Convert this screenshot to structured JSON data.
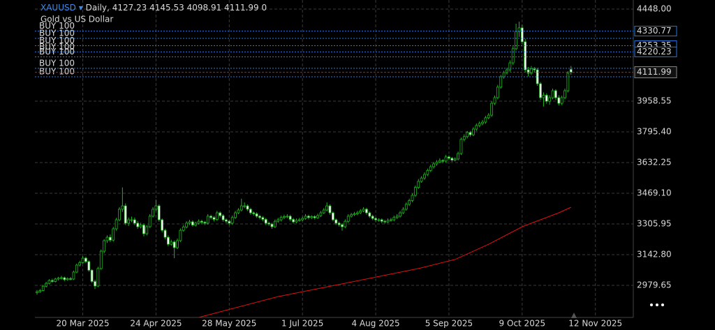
{
  "chart_data": {
    "type": "candlestick",
    "symbol": "XAUUSD",
    "timeframe": "Daily,",
    "volume": 0,
    "subtitle": "Gold vs US Dollar",
    "ylim": [
      2809,
      4496
    ],
    "yticks": [
      {
        "value": 4448,
        "label": "4448.00"
      },
      {
        "value": 3958.55,
        "label": "3958.55"
      },
      {
        "value": 3795.4,
        "label": "3795.40"
      },
      {
        "value": 3632.25,
        "label": "3632.25"
      },
      {
        "value": 3469.1,
        "label": "3469.10"
      },
      {
        "value": 3305.95,
        "label": "3305.95"
      },
      {
        "value": 3142.8,
        "label": "3142.80"
      },
      {
        "value": 2979.65,
        "label": "2979.65"
      }
    ],
    "grid": true,
    "bull_color": "#000000",
    "bear_color": "#ffffff",
    "candle_outline": "#1fb81f",
    "categories": [
      null,
      null,
      null,
      null,
      null,
      null,
      null,
      null,
      null,
      null,
      null,
      null,
      null,
      null,
      null,
      "20 Mar 2025",
      null,
      null,
      null,
      null,
      null,
      null,
      null,
      null,
      null,
      null,
      null,
      null,
      null,
      null,
      null,
      null,
      null,
      null,
      null,
      null,
      null,
      null,
      null,
      "24 Apr 2025",
      null,
      null,
      null,
      null,
      null,
      null,
      null,
      null,
      null,
      null,
      null,
      null,
      null,
      null,
      null,
      null,
      null,
      null,
      null,
      null,
      null,
      null,
      null,
      "28 May 2025",
      null,
      null,
      null,
      null,
      null,
      null,
      null,
      null,
      null,
      null,
      null,
      null,
      null,
      null,
      null,
      null,
      null,
      null,
      null,
      null,
      null,
      null,
      null,
      "1 Jul 2025",
      null,
      null,
      null,
      null,
      null,
      null,
      null,
      null,
      null,
      null,
      null,
      null,
      null,
      null,
      null,
      null,
      null,
      null,
      null,
      null,
      null,
      null,
      null,
      "4 Aug 2025",
      null,
      null,
      null,
      null,
      null,
      null,
      null,
      null,
      null,
      null,
      null,
      null,
      null,
      null,
      null,
      null,
      null,
      null,
      null,
      null,
      null,
      null,
      null,
      "5 Sep 2025",
      null,
      null,
      null,
      null,
      null,
      null,
      null,
      null,
      null,
      null,
      null,
      null,
      null,
      null,
      null,
      null,
      null,
      null,
      null,
      null,
      null,
      null,
      null,
      "9 Oct 2025",
      null,
      null,
      null,
      null,
      null,
      null,
      null,
      null,
      null,
      null,
      null,
      null,
      null,
      null,
      null,
      null,
      null,
      null,
      null,
      null,
      null,
      null,
      null,
      "12 Nov 2025",
      null
    ],
    "candles": [
      [
        2940,
        2955,
        2930,
        2946
      ],
      [
        2946,
        2960,
        2940,
        2952
      ],
      [
        2952,
        2982,
        2948,
        2975
      ],
      [
        2975,
        2998,
        2968,
        2990
      ],
      [
        2990,
        3012,
        2985,
        3005
      ],
      [
        3005,
        3015,
        2994,
        3000
      ],
      [
        3000,
        3020,
        2995,
        3013
      ],
      [
        3013,
        3025,
        3005,
        3018
      ],
      [
        3018,
        3030,
        3010,
        3020
      ],
      [
        3020,
        3026,
        3002,
        3010
      ],
      [
        3010,
        3022,
        3004,
        3015
      ],
      [
        3015,
        3024,
        3006,
        3013
      ],
      [
        3013,
        3058,
        3008,
        3050
      ],
      [
        3050,
        3095,
        3044,
        3087
      ],
      [
        3087,
        3110,
        3080,
        3100
      ],
      [
        3100,
        3135,
        3095,
        3124
      ],
      [
        3124,
        3132,
        3098,
        3106
      ],
      [
        3106,
        3112,
        3052,
        3060
      ],
      [
        3060,
        3066,
        2992,
        3000
      ],
      [
        3000,
        3010,
        2960,
        2976
      ],
      [
        2976,
        3078,
        2970,
        3069
      ],
      [
        3069,
        3170,
        3062,
        3161
      ],
      [
        3161,
        3225,
        3150,
        3217
      ],
      [
        3217,
        3245,
        3205,
        3235
      ],
      [
        3235,
        3250,
        3210,
        3220
      ],
      [
        3220,
        3290,
        3212,
        3280
      ],
      [
        3280,
        3338,
        3270,
        3328
      ],
      [
        3328,
        3395,
        3320,
        3384
      ],
      [
        3384,
        3500,
        3370,
        3402
      ],
      [
        3402,
        3415,
        3300,
        3310
      ],
      [
        3310,
        3340,
        3295,
        3328
      ],
      [
        3328,
        3345,
        3315,
        3328
      ],
      [
        3328,
        3340,
        3300,
        3310
      ],
      [
        3310,
        3322,
        3280,
        3291
      ],
      [
        3291,
        3312,
        3282,
        3300
      ],
      [
        3300,
        3308,
        3240,
        3254
      ],
      [
        3254,
        3300,
        3245,
        3291
      ],
      [
        3291,
        3358,
        3285,
        3347
      ],
      [
        3347,
        3395,
        3340,
        3384
      ],
      [
        3384,
        3435,
        3375,
        3402
      ],
      [
        3402,
        3410,
        3318,
        3328
      ],
      [
        3328,
        3335,
        3262,
        3272
      ],
      [
        3272,
        3280,
        3225,
        3235
      ],
      [
        3235,
        3245,
        3188,
        3198
      ],
      [
        3198,
        3222,
        3190,
        3210
      ],
      [
        3210,
        3218,
        3124,
        3180
      ],
      [
        3180,
        3228,
        3172,
        3217
      ],
      [
        3217,
        3282,
        3210,
        3272
      ],
      [
        3272,
        3300,
        3265,
        3290
      ],
      [
        3290,
        3320,
        3282,
        3310
      ],
      [
        3310,
        3328,
        3300,
        3317
      ],
      [
        3317,
        3325,
        3292,
        3300
      ],
      [
        3300,
        3318,
        3292,
        3310
      ],
      [
        3310,
        3330,
        3302,
        3320
      ],
      [
        3320,
        3328,
        3305,
        3315
      ],
      [
        3315,
        3322,
        3300,
        3310
      ],
      [
        3310,
        3358,
        3302,
        3347
      ],
      [
        3347,
        3355,
        3330,
        3340
      ],
      [
        3340,
        3348,
        3320,
        3330
      ],
      [
        3330,
        3375,
        3322,
        3365
      ],
      [
        3365,
        3372,
        3340,
        3350
      ],
      [
        3350,
        3358,
        3318,
        3328
      ],
      [
        3328,
        3335,
        3310,
        3320
      ],
      [
        3320,
        3328,
        3300,
        3310
      ],
      [
        3310,
        3350,
        3302,
        3340
      ],
      [
        3340,
        3375,
        3332,
        3365
      ],
      [
        3365,
        3390,
        3358,
        3380
      ],
      [
        3380,
        3440,
        3372,
        3402
      ],
      [
        3402,
        3420,
        3390,
        3402
      ],
      [
        3402,
        3410,
        3375,
        3384
      ],
      [
        3384,
        3392,
        3355,
        3365
      ],
      [
        3365,
        3372,
        3350,
        3360
      ],
      [
        3360,
        3368,
        3338,
        3347
      ],
      [
        3347,
        3355,
        3330,
        3340
      ],
      [
        3340,
        3348,
        3320,
        3330
      ],
      [
        3330,
        3338,
        3300,
        3310
      ],
      [
        3310,
        3318,
        3296,
        3305
      ],
      [
        3305,
        3312,
        3280,
        3291
      ],
      [
        3291,
        3330,
        3284,
        3320
      ],
      [
        3320,
        3338,
        3312,
        3328
      ],
      [
        3328,
        3350,
        3320,
        3340
      ],
      [
        3340,
        3355,
        3332,
        3345
      ],
      [
        3345,
        3358,
        3336,
        3347
      ],
      [
        3347,
        3355,
        3320,
        3330
      ],
      [
        3330,
        3338,
        3308,
        3317
      ],
      [
        3317,
        3335,
        3310,
        3325
      ],
      [
        3325,
        3338,
        3318,
        3328
      ],
      [
        3328,
        3345,
        3320,
        3335
      ],
      [
        3335,
        3358,
        3328,
        3347
      ],
      [
        3347,
        3355,
        3330,
        3340
      ],
      [
        3340,
        3352,
        3332,
        3345
      ],
      [
        3345,
        3352,
        3330,
        3339
      ],
      [
        3339,
        3360,
        3332,
        3350
      ],
      [
        3350,
        3375,
        3342,
        3365
      ],
      [
        3365,
        3390,
        3358,
        3380
      ],
      [
        3380,
        3420,
        3372,
        3402
      ],
      [
        3402,
        3410,
        3355,
        3365
      ],
      [
        3365,
        3372,
        3320,
        3328
      ],
      [
        3328,
        3335,
        3300,
        3310
      ],
      [
        3310,
        3318,
        3292,
        3302
      ],
      [
        3302,
        3310,
        3270,
        3291
      ],
      [
        3291,
        3330,
        3284,
        3320
      ],
      [
        3320,
        3358,
        3312,
        3347
      ],
      [
        3347,
        3365,
        3340,
        3355
      ],
      [
        3355,
        3370,
        3348,
        3360
      ],
      [
        3360,
        3375,
        3352,
        3365
      ],
      [
        3365,
        3385,
        3358,
        3375
      ],
      [
        3375,
        3395,
        3368,
        3384
      ],
      [
        3384,
        3392,
        3355,
        3365
      ],
      [
        3365,
        3372,
        3338,
        3347
      ],
      [
        3347,
        3355,
        3326,
        3335
      ],
      [
        3335,
        3342,
        3318,
        3328
      ],
      [
        3328,
        3336,
        3318,
        3328
      ],
      [
        3328,
        3335,
        3310,
        3320
      ],
      [
        3320,
        3328,
        3308,
        3317
      ],
      [
        3317,
        3335,
        3310,
        3325
      ],
      [
        3325,
        3338,
        3318,
        3328
      ],
      [
        3328,
        3350,
        3320,
        3340
      ],
      [
        3340,
        3358,
        3332,
        3347
      ],
      [
        3347,
        3375,
        3340,
        3365
      ],
      [
        3365,
        3395,
        3358,
        3384
      ],
      [
        3384,
        3420,
        3376,
        3410
      ],
      [
        3410,
        3440,
        3402,
        3430
      ],
      [
        3430,
        3468,
        3422,
        3458
      ],
      [
        3458,
        3510,
        3450,
        3500
      ],
      [
        3500,
        3545,
        3492,
        3532
      ],
      [
        3532,
        3560,
        3525,
        3550
      ],
      [
        3550,
        3580,
        3540,
        3569
      ],
      [
        3569,
        3600,
        3560,
        3590
      ],
      [
        3590,
        3620,
        3582,
        3610
      ],
      [
        3610,
        3635,
        3600,
        3625
      ],
      [
        3625,
        3645,
        3615,
        3635
      ],
      [
        3635,
        3655,
        3628,
        3643
      ],
      [
        3643,
        3650,
        3630,
        3640
      ],
      [
        3640,
        3672,
        3632,
        3662
      ],
      [
        3662,
        3670,
        3645,
        3655
      ],
      [
        3655,
        3662,
        3636,
        3645
      ],
      [
        3645,
        3660,
        3638,
        3651
      ],
      [
        3651,
        3690,
        3644,
        3680
      ],
      [
        3680,
        3765,
        3672,
        3755
      ],
      [
        3755,
        3782,
        3745,
        3770
      ],
      [
        3770,
        3800,
        3760,
        3792
      ],
      [
        3792,
        3800,
        3770,
        3780
      ],
      [
        3780,
        3820,
        3772,
        3810
      ],
      [
        3810,
        3840,
        3800,
        3829
      ],
      [
        3829,
        3850,
        3820,
        3840
      ],
      [
        3840,
        3858,
        3830,
        3847
      ],
      [
        3847,
        3880,
        3838,
        3870
      ],
      [
        3870,
        3895,
        3862,
        3884
      ],
      [
        3884,
        3958,
        3875,
        3947
      ],
      [
        3947,
        3988,
        3938,
        3977
      ],
      [
        3977,
        4045,
        3968,
        4033
      ],
      [
        4033,
        4098,
        4025,
        4088
      ],
      [
        4088,
        4120,
        4078,
        4110
      ],
      [
        4110,
        4135,
        4100,
        4125
      ],
      [
        4125,
        4175,
        4115,
        4162
      ],
      [
        4162,
        4250,
        4152,
        4237
      ],
      [
        4237,
        4370,
        4228,
        4329
      ],
      [
        4329,
        4381,
        4300,
        4348
      ],
      [
        4348,
        4365,
        4262,
        4274
      ],
      [
        4274,
        4290,
        4110,
        4125
      ],
      [
        4125,
        4140,
        4090,
        4107
      ],
      [
        4107,
        4145,
        4098,
        4130
      ],
      [
        4130,
        4140,
        4112,
        4125
      ],
      [
        4125,
        4135,
        4040,
        4051
      ],
      [
        4051,
        4060,
        3965,
        3977
      ],
      [
        3977,
        4005,
        3930,
        3990
      ],
      [
        3990,
        4000,
        3945,
        3958
      ],
      [
        3958,
        3990,
        3940,
        3977
      ],
      [
        3977,
        4025,
        3968,
        4014
      ],
      [
        4014,
        4022,
        3965,
        3977
      ],
      [
        3977,
        3990,
        3935,
        3947
      ],
      [
        3947,
        3988,
        3938,
        3977
      ],
      [
        3977,
        4025,
        3968,
        4014
      ],
      [
        4014,
        4118,
        4005,
        4107
      ],
      [
        4127.23,
        4145.53,
        4098.91,
        4111.99
      ],
      null,
      null,
      null,
      null,
      null,
      null,
      null,
      null,
      null
    ],
    "ma": {
      "color": "#e01010",
      "x": [
        53,
        79,
        102,
        125,
        137,
        148,
        159,
        171,
        175
      ],
      "values": [
        2809,
        2920,
        2994,
        3069,
        3117,
        3198,
        3291,
        3365,
        3395
      ]
    },
    "bid_color": "#e01010",
    "order_color": "#2a78e0",
    "orders": [
      {
        "label": "BUY 100",
        "price": 4330.77,
        "price_labeled": true
      },
      {
        "label": "BUY 100",
        "price": 4292,
        "price_labeled": false
      },
      {
        "label": "BUY 100",
        "price": 4253.35,
        "price_labeled": true
      },
      {
        "label": "BUY 100",
        "price": 4220.23,
        "price_labeled": true
      },
      {
        "label": "BUY 100",
        "price": 4194,
        "price_labeled": false
      },
      {
        "label": "BUY 100",
        "price": 4133,
        "price_labeled": false
      },
      {
        "label": "BUY 100",
        "price": 4088,
        "price_labeled": false
      }
    ]
  }
}
